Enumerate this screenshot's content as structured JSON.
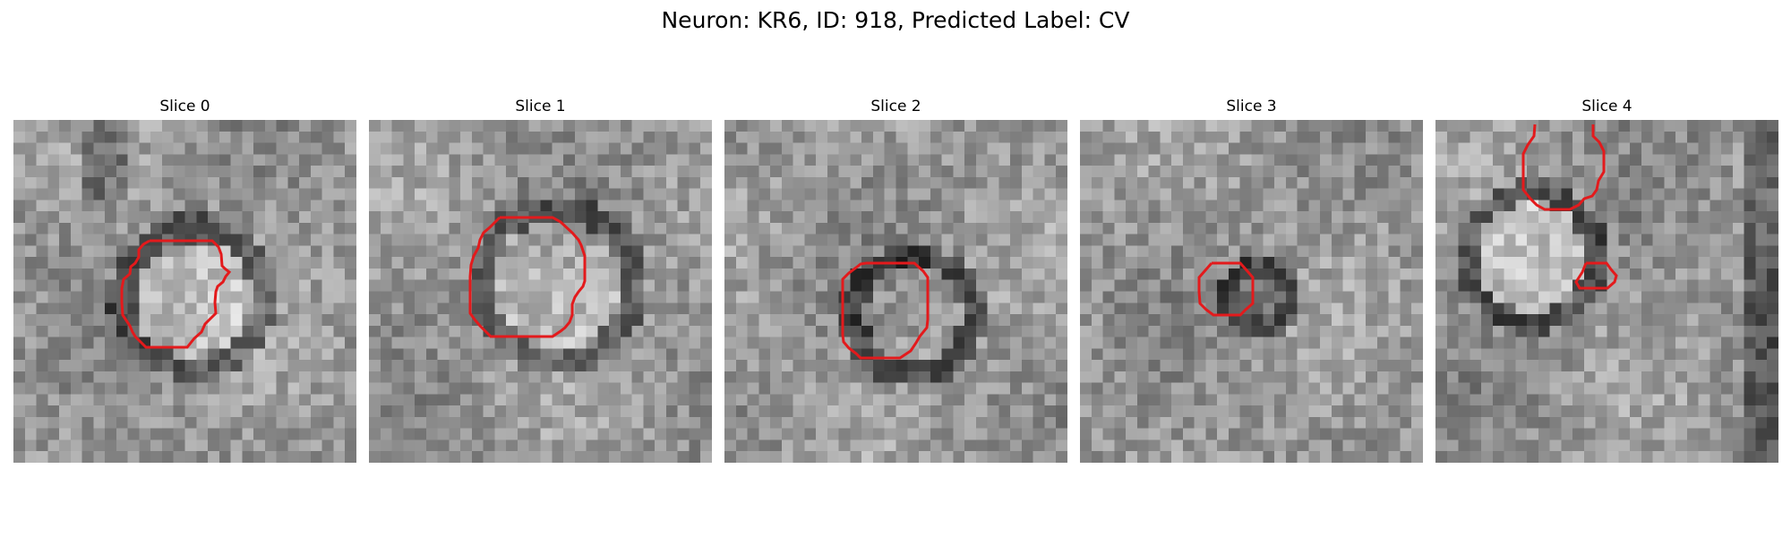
{
  "figure": {
    "title": "Neuron: KR6, ID: 918, Predicted Label: CV",
    "contour_color": "#e31a1c"
  },
  "slices": [
    {
      "title": "Slice 0"
    },
    {
      "title": "Slice 1"
    },
    {
      "title": "Slice 2"
    },
    {
      "title": "Slice 3"
    },
    {
      "title": "Slice 4"
    }
  ]
}
